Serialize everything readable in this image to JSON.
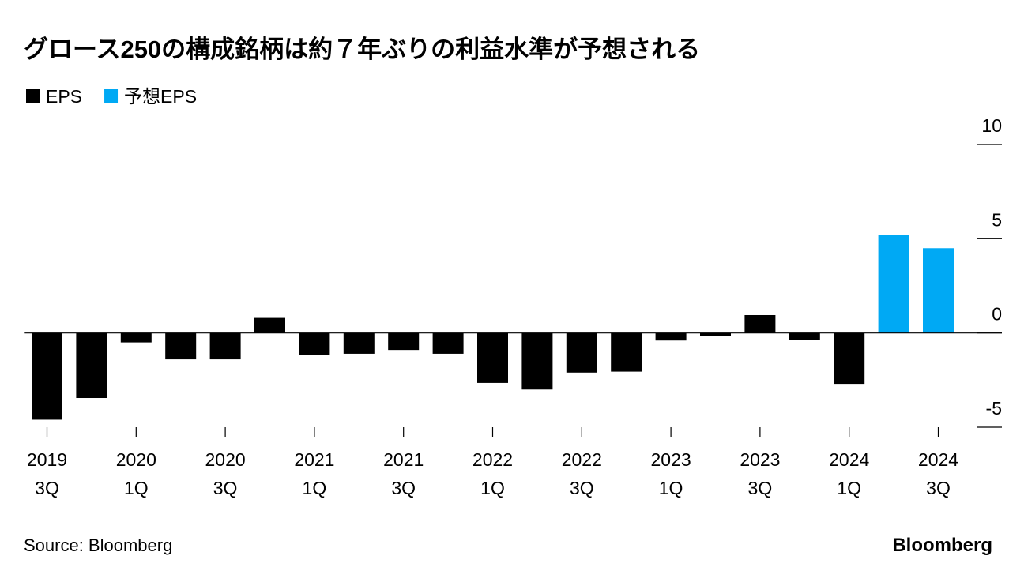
{
  "chart_data": {
    "type": "bar",
    "title": "グロース250の構成銘柄は約７年ぶりの利益水準が予想される",
    "categories": [
      [
        "2019",
        "3Q"
      ],
      null,
      [
        "2020",
        "1Q"
      ],
      null,
      [
        "2020",
        "3Q"
      ],
      null,
      [
        "2021",
        "1Q"
      ],
      null,
      [
        "2021",
        "3Q"
      ],
      null,
      [
        "2022",
        "1Q"
      ],
      null,
      [
        "2022",
        "3Q"
      ],
      null,
      [
        "2023",
        "1Q"
      ],
      null,
      [
        "2023",
        "3Q"
      ],
      null,
      [
        "2024",
        "1Q"
      ],
      null,
      [
        "2024",
        "3Q"
      ]
    ],
    "series": [
      {
        "name": "EPS",
        "color": "#000000",
        "values": [
          -4.6,
          -3.45,
          -0.5,
          -1.4,
          -1.4,
          0.8,
          -1.15,
          -1.1,
          -0.9,
          -1.1,
          -2.65,
          -3.0,
          -2.1,
          -2.05,
          -0.4,
          -0.15,
          0.95,
          -0.35,
          -2.7,
          null,
          null
        ]
      },
      {
        "name": "予想EPS",
        "color": "#00a9f4",
        "values": [
          null,
          null,
          null,
          null,
          null,
          null,
          null,
          null,
          null,
          null,
          null,
          null,
          null,
          null,
          null,
          null,
          null,
          null,
          null,
          5.2,
          4.5
        ]
      }
    ],
    "ylim": [
      -5,
      10
    ],
    "yticks": [
      -5,
      0,
      5,
      10
    ],
    "source": "Source: Bloomberg",
    "brand": "Bloomberg"
  }
}
